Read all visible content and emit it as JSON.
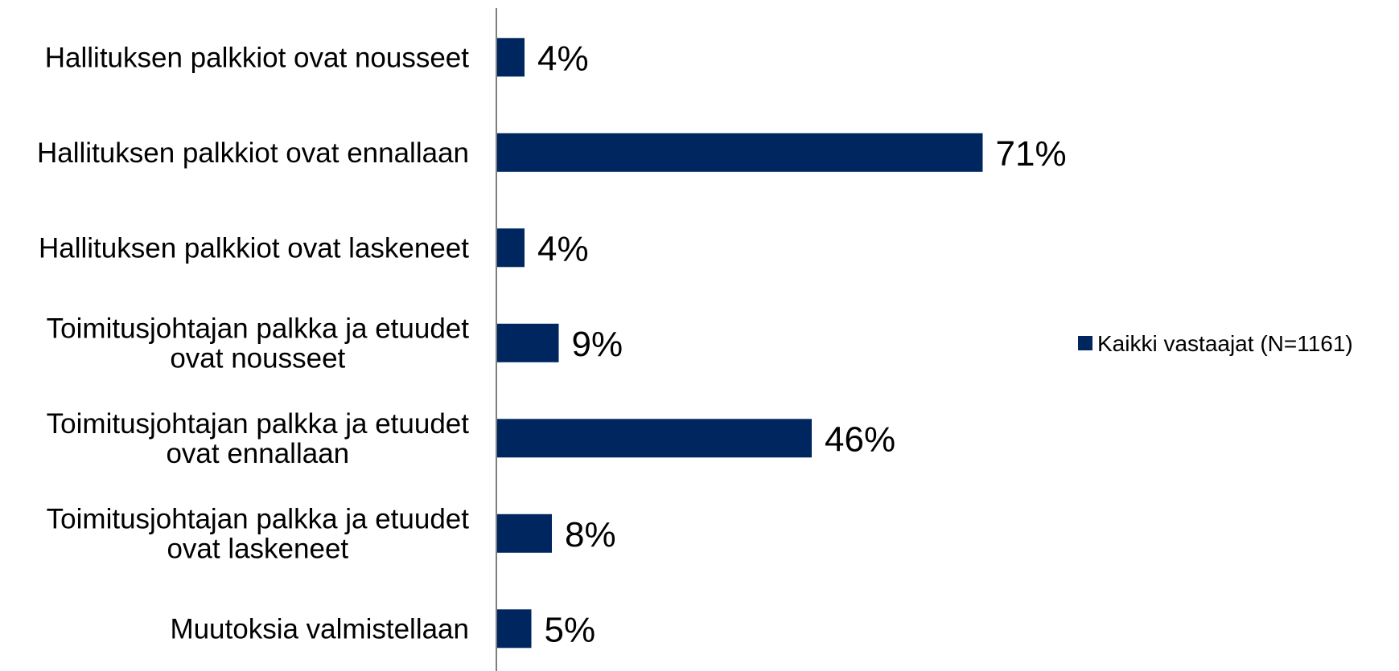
{
  "chart_data": {
    "type": "bar",
    "orientation": "horizontal",
    "categories": [
      [
        "Hallituksen palkkiot ovat nousseet"
      ],
      [
        "Hallituksen palkkiot ovat ennallaan"
      ],
      [
        "Hallituksen palkkiot ovat laskeneet"
      ],
      [
        "Toimitusjohtajan palkka ja etuudet",
        "ovat nousseet"
      ],
      [
        "Toimitusjohtajan palkka ja etuudet",
        "ovat ennallaan"
      ],
      [
        "Toimitusjohtajan palkka ja etuudet",
        "ovat laskeneet"
      ],
      [
        "Muutoksia valmistellaan"
      ]
    ],
    "series": [
      {
        "name": "Kaikki vastaajat (N=1161)",
        "color": "#002660",
        "values": [
          4,
          71,
          4,
          9,
          46,
          8,
          5
        ],
        "labels": [
          "4%",
          "71%",
          "4%",
          "9%",
          "46%",
          "8%",
          "5%"
        ]
      }
    ],
    "xlim": [
      0,
      100
    ],
    "grid": false,
    "legend_position": "right"
  }
}
